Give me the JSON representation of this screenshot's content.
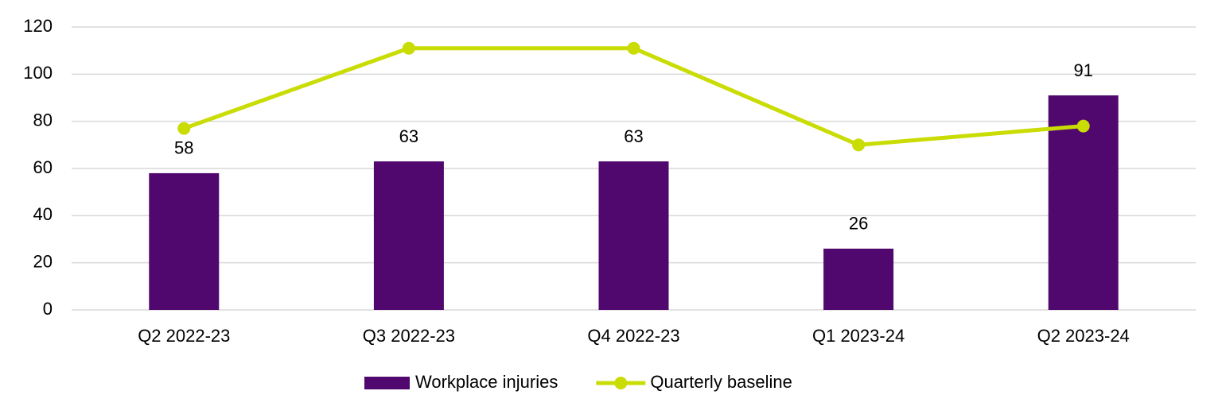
{
  "chart_data": {
    "type": "bar",
    "categories": [
      "Q2 2022-23",
      "Q3 2022-23",
      "Q4 2022-23",
      "Q1 2023-24",
      "Q2 2023-24"
    ],
    "series": [
      {
        "name": "Workplace injuries",
        "type": "bar",
        "color": "#50086e",
        "values": [
          58,
          63,
          63,
          26,
          91
        ],
        "data_labels": true
      },
      {
        "name": "Quarterly baseline",
        "type": "line",
        "color": "#c9dc03",
        "values": [
          77,
          111,
          111,
          70,
          78
        ]
      }
    ],
    "ylim": [
      0,
      120
    ],
    "yticks": [
      0,
      20,
      40,
      60,
      80,
      100,
      120
    ],
    "grid": true,
    "legend": "bottom"
  }
}
